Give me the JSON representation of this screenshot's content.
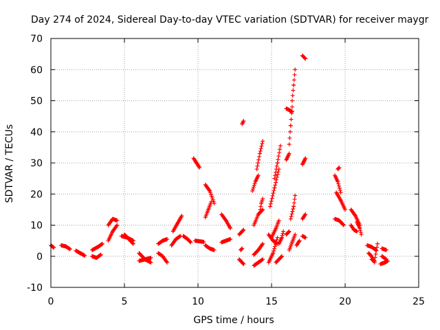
{
  "chart_data": {
    "type": "scatter",
    "title": "Day 274 of 2024, Sidereal Day-to-day VTEC variation (SDTVAR) for receiver maygr",
    "xlabel": "GPS time / hours",
    "ylabel": "SDTVAR / TECUs",
    "xlim": [
      0,
      25
    ],
    "ylim": [
      -10,
      70
    ],
    "xticks": [
      "0",
      "5",
      "10",
      "15",
      "20",
      "25"
    ],
    "yticks": [
      "-10",
      "0",
      "10",
      "20",
      "30",
      "40",
      "50",
      "60",
      "70"
    ],
    "grid": true,
    "marker": "+",
    "color": "#ff0000",
    "tracks": [
      {
        "x": [
          0.0,
          0.2
        ],
        "y": [
          3.5,
          2.8
        ]
      },
      {
        "x": [
          0.7,
          1.0,
          1.3
        ],
        "y": [
          3.5,
          3.2,
          2.3
        ]
      },
      {
        "x": [
          1.7,
          2.0,
          2.3
        ],
        "y": [
          1.8,
          1.0,
          0.2
        ]
      },
      {
        "x": [
          2.8,
          3.1,
          3.4
        ],
        "y": [
          0.0,
          -0.5,
          0.5
        ]
      },
      {
        "x": [
          2.8,
          3.2,
          3.5
        ],
        "y": [
          2.0,
          3.0,
          4.0
        ]
      },
      {
        "x": [
          3.9,
          4.2,
          4.5
        ],
        "y": [
          5.0,
          8.0,
          10.0
        ]
      },
      {
        "x": [
          3.9,
          4.2,
          4.5
        ],
        "y": [
          10.0,
          12.0,
          11.5
        ]
      },
      {
        "x": [
          4.8,
          5.2,
          5.6
        ],
        "y": [
          6.5,
          6.0,
          5.0
        ]
      },
      {
        "x": [
          5.0,
          5.3,
          5.6
        ],
        "y": [
          7.0,
          5.5,
          4.0
        ]
      },
      {
        "x": [
          6.0,
          6.4,
          6.8
        ],
        "y": [
          1.0,
          -1.0,
          -2.0
        ]
      },
      {
        "x": [
          6.0,
          6.4,
          6.8
        ],
        "y": [
          -1.5,
          -1.0,
          -0.5
        ]
      },
      {
        "x": [
          7.3,
          7.6,
          7.9
        ],
        "y": [
          1.0,
          0.0,
          -2.0
        ]
      },
      {
        "x": [
          7.3,
          7.6,
          7.9
        ],
        "y": [
          4.0,
          5.0,
          5.5
        ]
      },
      {
        "x": [
          8.2,
          8.5,
          8.8
        ],
        "y": [
          3.5,
          5.5,
          6.5
        ]
      },
      {
        "x": [
          8.3,
          8.6,
          8.9
        ],
        "y": [
          8.0,
          10.5,
          13.0
        ]
      },
      {
        "x": [
          9.0,
          9.3,
          9.5
        ],
        "y": [
          6.5,
          5.5,
          4.5
        ]
      },
      {
        "x": [
          9.7,
          9.9,
          10.1
        ],
        "y": [
          31.5,
          30.0,
          28.5
        ]
      },
      {
        "x": [
          9.8,
          10.1,
          10.4
        ],
        "y": [
          5.0,
          4.8,
          4.6
        ]
      },
      {
        "x": [
          10.5,
          10.8,
          11.1
        ],
        "y": [
          3.5,
          2.5,
          2.0
        ]
      },
      {
        "x": [
          10.5,
          10.8,
          11.1
        ],
        "y": [
          23.0,
          21.0,
          17.0
        ]
      },
      {
        "x": [
          10.5,
          10.7,
          10.9
        ],
        "y": [
          12.5,
          15.0,
          17.5
        ]
      },
      {
        "x": [
          11.6,
          11.9,
          12.2
        ],
        "y": [
          13.5,
          11.5,
          9.0
        ]
      },
      {
        "x": [
          11.6,
          11.9,
          12.2
        ],
        "y": [
          4.5,
          5.0,
          5.5
        ]
      },
      {
        "x": [
          12.8,
          13.1
        ],
        "y": [
          7.0,
          8.5
        ]
      },
      {
        "x": [
          12.8,
          13.1
        ],
        "y": [
          -1.0,
          -2.5
        ]
      },
      {
        "x": [
          12.9,
          13.0
        ],
        "y": [
          2.0,
          2.5
        ]
      },
      {
        "x": [
          13.0,
          13.1
        ],
        "y": [
          42.5,
          43.5
        ]
      },
      {
        "x": [
          13.8,
          14.1,
          14.4
        ],
        "y": [
          -3.0,
          -2.0,
          -1.0
        ]
      },
      {
        "x": [
          13.8,
          14.1,
          14.4
        ],
        "y": [
          0.5,
          2.0,
          4.0
        ]
      },
      {
        "x": [
          13.8,
          14.1,
          14.4
        ],
        "y": [
          10.0,
          13.5,
          15.0
        ]
      },
      {
        "x": [
          13.7,
          13.9,
          14.1
        ],
        "y": [
          21.0,
          24.0,
          26.0
        ]
      },
      {
        "x": [
          14.0,
          14.2,
          14.4
        ],
        "y": [
          28.0,
          33.0,
          37.0
        ]
      },
      {
        "x": [
          14.2,
          14.3,
          14.4
        ],
        "y": [
          14.0,
          17.0,
          18.5
        ]
      },
      {
        "x": [
          14.8,
          15.1,
          15.4
        ],
        "y": [
          -2.0,
          1.0,
          6.0
        ]
      },
      {
        "x": [
          14.8,
          15.1,
          15.4
        ],
        "y": [
          7.0,
          5.0,
          4.0
        ]
      },
      {
        "x": [
          15.0,
          15.3,
          15.5
        ],
        "y": [
          6.0,
          9.0,
          11.5
        ]
      },
      {
        "x": [
          14.9,
          15.2,
          15.5
        ],
        "y": [
          16.0,
          22.0,
          28.0
        ]
      },
      {
        "x": [
          15.2,
          15.4,
          15.6
        ],
        "y": [
          25.0,
          30.0,
          35.5
        ]
      },
      {
        "x": [
          15.3,
          15.5,
          15.7
        ],
        "y": [
          -2.0,
          -1.0,
          0.0
        ]
      },
      {
        "x": [
          15.5,
          15.7,
          15.8
        ],
        "y": [
          4.0,
          6.0,
          8.0
        ]
      },
      {
        "x": [
          16.0,
          16.2
        ],
        "y": [
          7.0,
          8.0
        ]
      },
      {
        "x": [
          16.0,
          16.1,
          16.2
        ],
        "y": [
          31.0,
          32.0,
          33.0
        ]
      },
      {
        "x": [
          16.0,
          16.2,
          16.4
        ],
        "y": [
          47.5,
          47.0,
          46.5
        ]
      },
      {
        "x": [
          16.2,
          16.3,
          16.4
        ],
        "y": [
          36.0,
          42.0,
          48.0
        ]
      },
      {
        "x": [
          16.4,
          16.5,
          16.6
        ],
        "y": [
          50.0,
          55.0,
          60.0
        ]
      },
      {
        "x": [
          16.2,
          16.4,
          16.6
        ],
        "y": [
          2.0,
          4.5,
          7.0
        ]
      },
      {
        "x": [
          16.3,
          16.5,
          16.6
        ],
        "y": [
          12.0,
          16.0,
          19.5
        ]
      },
      {
        "x": [
          16.7,
          16.9
        ],
        "y": [
          3.5,
          5.0
        ]
      },
      {
        "x": [
          17.1,
          17.3
        ],
        "y": [
          64.5,
          63.5
        ]
      },
      {
        "x": [
          17.1,
          17.2,
          17.3
        ],
        "y": [
          29.5,
          30.5,
          31.5
        ]
      },
      {
        "x": [
          17.1,
          17.3
        ],
        "y": [
          12.0,
          13.5
        ]
      },
      {
        "x": [
          17.1,
          17.3
        ],
        "y": [
          6.5,
          6.0
        ]
      },
      {
        "x": [
          19.3,
          19.5,
          19.7
        ],
        "y": [
          26.0,
          24.0,
          20.5
        ]
      },
      {
        "x": [
          19.5,
          19.6
        ],
        "y": [
          28.0,
          28.5
        ]
      },
      {
        "x": [
          19.4,
          19.7,
          20.0
        ],
        "y": [
          20.5,
          18.0,
          15.0
        ]
      },
      {
        "x": [
          19.3,
          19.6,
          19.9
        ],
        "y": [
          12.0,
          11.5,
          10.0
        ]
      },
      {
        "x": [
          20.4,
          20.6,
          20.8
        ],
        "y": [
          10.0,
          8.5,
          8.0
        ]
      },
      {
        "x": [
          20.4,
          20.7,
          21.0
        ],
        "y": [
          15.0,
          13.0,
          10.0
        ]
      },
      {
        "x": [
          20.8,
          21.0,
          21.1
        ],
        "y": [
          11.0,
          9.0,
          7.0
        ]
      },
      {
        "x": [
          21.5,
          21.8,
          22.1
        ],
        "y": [
          3.5,
          3.0,
          2.0
        ]
      },
      {
        "x": [
          21.6,
          21.8,
          22.0
        ],
        "y": [
          1.0,
          0.0,
          -2.0
        ]
      },
      {
        "x": [
          21.8,
          22.0,
          22.2
        ],
        "y": [
          -1.0,
          -1.5,
          4.0
        ]
      },
      {
        "x": [
          22.5,
          22.8
        ],
        "y": [
          2.5,
          2.0
        ]
      },
      {
        "x": [
          22.5,
          22.8
        ],
        "y": [
          0.0,
          -1.0
        ]
      },
      {
        "x": [
          22.4,
          22.7,
          22.9
        ],
        "y": [
          -2.5,
          -2.0,
          -1.5
        ]
      }
    ]
  }
}
